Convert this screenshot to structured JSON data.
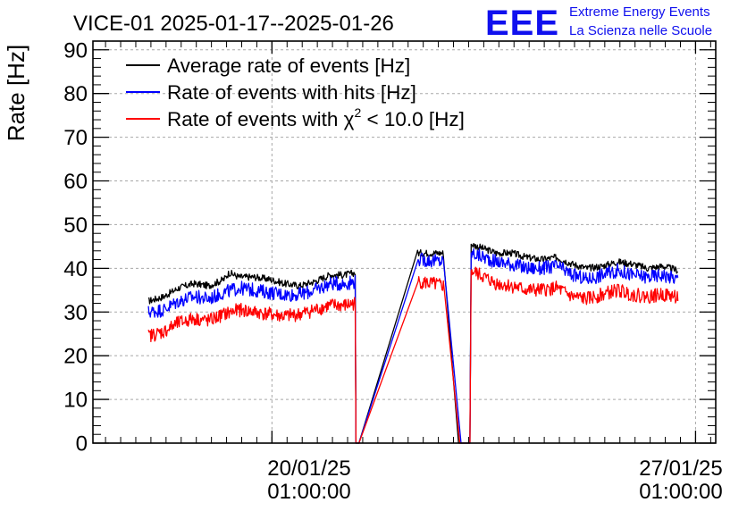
{
  "chart_data": {
    "type": "line",
    "title": "VICE-01 2025-01-17--2025-01-26",
    "xlabel": "",
    "ylabel": "Rate [Hz]",
    "ylim": [
      0,
      92
    ],
    "yticks": [
      0,
      10,
      20,
      30,
      40,
      50,
      60,
      70,
      80,
      90
    ],
    "x_axis": "time",
    "xlim": [
      "2025-01-17T02:00:00",
      "2025-01-27T09:00:00"
    ],
    "xticks": [
      {
        "x": "2025-01-20T01:00:00",
        "date": "20/01/25",
        "time": "01:00:00"
      },
      {
        "x": "2025-01-27T01:00:00",
        "date": "27/01/25",
        "time": "01:00:00"
      }
    ],
    "grid": true,
    "legend": "top-left",
    "logo": {
      "text": "EEE",
      "line1": "Extreme Energy Events",
      "line2": "La Scienza nelle Scuole",
      "color": "#1010ee"
    },
    "series": [
      {
        "name": "Average rate of events [Hz]",
        "color": "#000000",
        "noise": 0.8,
        "points": [
          [
            "2025-01-18T00:00:00",
            32.5
          ],
          [
            "2025-01-18T06:00:00",
            33.5
          ],
          [
            "2025-01-18T12:00:00",
            35.5
          ],
          [
            "2025-01-18T18:00:00",
            36.5
          ],
          [
            "2025-01-19T00:00:00",
            36.0
          ],
          [
            "2025-01-19T06:00:00",
            37.5
          ],
          [
            "2025-01-19T08:00:00",
            39.0
          ],
          [
            "2025-01-19T12:00:00",
            38.0
          ],
          [
            "2025-01-19T18:00:00",
            38.0
          ],
          [
            "2025-01-20T00:00:00",
            37.5
          ],
          [
            "2025-01-20T06:00:00",
            36.5
          ],
          [
            "2025-01-20T12:00:00",
            36.0
          ],
          [
            "2025-01-20T18:00:00",
            37.0
          ],
          [
            "2025-01-21T00:00:00",
            38.5
          ],
          [
            "2025-01-21T06:00:00",
            38.5
          ],
          [
            "2025-01-21T10:00:00",
            39.0
          ],
          [
            "2025-01-21T10:20:00",
            0
          ],
          [
            "2025-01-21T11:30:00",
            0
          ],
          [
            "2025-01-22T10:30:00",
            43.5
          ],
          [
            "2025-01-22T21:00:00",
            43.5
          ],
          [
            "2025-01-23T03:00:00",
            0
          ],
          [
            "2025-01-23T07:30:00",
            0
          ],
          [
            "2025-01-23T08:00:00",
            45.5
          ],
          [
            "2025-01-23T18:00:00",
            43.5
          ],
          [
            "2025-01-24T00:00:00",
            43.5
          ],
          [
            "2025-01-24T06:00:00",
            42.5
          ],
          [
            "2025-01-24T12:00:00",
            42.0
          ],
          [
            "2025-01-24T18:00:00",
            42.5
          ],
          [
            "2025-01-25T00:00:00",
            41.0
          ],
          [
            "2025-01-25T06:00:00",
            40.0
          ],
          [
            "2025-01-25T12:00:00",
            40.5
          ],
          [
            "2025-01-25T18:00:00",
            41.5
          ],
          [
            "2025-01-26T00:00:00",
            41.0
          ],
          [
            "2025-01-26T06:00:00",
            40.0
          ],
          [
            "2025-01-26T12:00:00",
            40.5
          ],
          [
            "2025-01-26T18:00:00",
            39.5
          ]
        ]
      },
      {
        "name": "Rate of events with hits [Hz]",
        "color": "#0000ff",
        "noise": 1.6,
        "points": [
          [
            "2025-01-18T00:00:00",
            30.0
          ],
          [
            "2025-01-18T06:00:00",
            30.5
          ],
          [
            "2025-01-18T12:00:00",
            32.5
          ],
          [
            "2025-01-18T18:00:00",
            33.5
          ],
          [
            "2025-01-19T00:00:00",
            33.0
          ],
          [
            "2025-01-19T06:00:00",
            34.5
          ],
          [
            "2025-01-19T12:00:00",
            35.5
          ],
          [
            "2025-01-19T18:00:00",
            35.0
          ],
          [
            "2025-01-20T00:00:00",
            34.5
          ],
          [
            "2025-01-20T06:00:00",
            34.0
          ],
          [
            "2025-01-20T12:00:00",
            34.0
          ],
          [
            "2025-01-20T18:00:00",
            35.0
          ],
          [
            "2025-01-21T00:00:00",
            36.5
          ],
          [
            "2025-01-21T06:00:00",
            36.5
          ],
          [
            "2025-01-21T10:00:00",
            37.0
          ],
          [
            "2025-01-21T10:20:00",
            0
          ],
          [
            "2025-01-21T11:30:00",
            0
          ],
          [
            "2025-01-22T11:00:00",
            42.0
          ],
          [
            "2025-01-22T21:00:00",
            41.5
          ],
          [
            "2025-01-23T04:00:00",
            0
          ],
          [
            "2025-01-23T07:30:00",
            0
          ],
          [
            "2025-01-23T08:00:00",
            43.5
          ],
          [
            "2025-01-23T18:00:00",
            41.5
          ],
          [
            "2025-01-24T00:00:00",
            41.0
          ],
          [
            "2025-01-24T06:00:00",
            40.0
          ],
          [
            "2025-01-24T12:00:00",
            40.0
          ],
          [
            "2025-01-24T18:00:00",
            40.5
          ],
          [
            "2025-01-25T00:00:00",
            38.5
          ],
          [
            "2025-01-25T06:00:00",
            37.5
          ],
          [
            "2025-01-25T12:00:00",
            38.5
          ],
          [
            "2025-01-25T18:00:00",
            39.5
          ],
          [
            "2025-01-26T00:00:00",
            38.5
          ],
          [
            "2025-01-26T06:00:00",
            38.0
          ],
          [
            "2025-01-26T12:00:00",
            38.5
          ],
          [
            "2025-01-26T18:00:00",
            37.5
          ]
        ]
      },
      {
        "name": "Rate of events with",
        "name_suffix": " < 10.0 [Hz]",
        "greek": "χ",
        "sup": "2",
        "color": "#ff0000",
        "noise": 1.6,
        "points": [
          [
            "2025-01-18T00:00:00",
            24.5
          ],
          [
            "2025-01-18T06:00:00",
            25.5
          ],
          [
            "2025-01-18T12:00:00",
            27.5
          ],
          [
            "2025-01-18T18:00:00",
            28.5
          ],
          [
            "2025-01-19T00:00:00",
            28.0
          ],
          [
            "2025-01-19T06:00:00",
            29.5
          ],
          [
            "2025-01-19T12:00:00",
            30.5
          ],
          [
            "2025-01-19T18:00:00",
            30.0
          ],
          [
            "2025-01-20T00:00:00",
            29.5
          ],
          [
            "2025-01-20T06:00:00",
            29.0
          ],
          [
            "2025-01-20T12:00:00",
            29.5
          ],
          [
            "2025-01-20T18:00:00",
            30.5
          ],
          [
            "2025-01-21T00:00:00",
            31.5
          ],
          [
            "2025-01-21T06:00:00",
            31.5
          ],
          [
            "2025-01-21T10:00:00",
            32.0
          ],
          [
            "2025-01-21T10:20:00",
            0
          ],
          [
            "2025-01-21T11:30:00",
            0
          ],
          [
            "2025-01-22T11:00:00",
            37.0
          ],
          [
            "2025-01-22T21:00:00",
            36.0
          ],
          [
            "2025-01-23T03:30:00",
            0
          ],
          [
            "2025-01-23T07:30:00",
            0
          ],
          [
            "2025-01-23T08:00:00",
            39.5
          ],
          [
            "2025-01-23T18:00:00",
            36.5
          ],
          [
            "2025-01-24T00:00:00",
            36.0
          ],
          [
            "2025-01-24T06:00:00",
            35.0
          ],
          [
            "2025-01-24T12:00:00",
            35.0
          ],
          [
            "2025-01-24T18:00:00",
            35.5
          ],
          [
            "2025-01-25T00:00:00",
            33.5
          ],
          [
            "2025-01-25T06:00:00",
            33.0
          ],
          [
            "2025-01-25T12:00:00",
            34.0
          ],
          [
            "2025-01-25T18:00:00",
            35.0
          ],
          [
            "2025-01-26T00:00:00",
            34.0
          ],
          [
            "2025-01-26T06:00:00",
            33.5
          ],
          [
            "2025-01-26T12:00:00",
            34.0
          ],
          [
            "2025-01-26T18:00:00",
            33.5
          ]
        ]
      }
    ]
  }
}
